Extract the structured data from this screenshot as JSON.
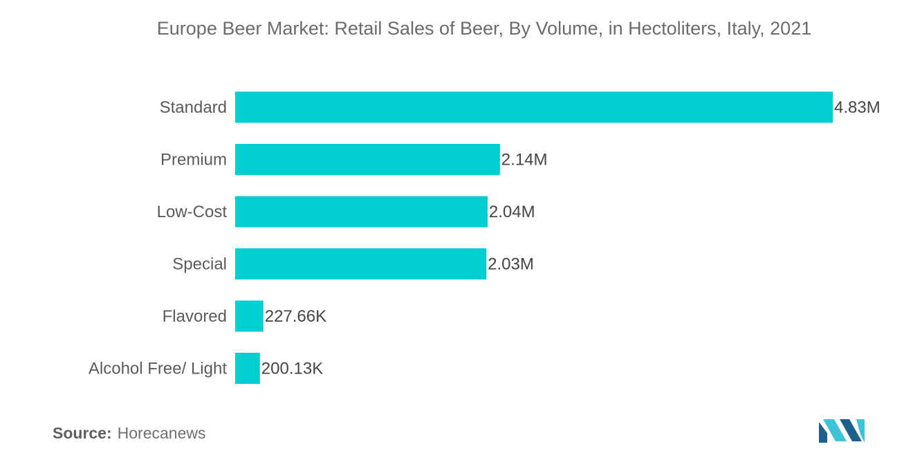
{
  "chart_data": {
    "type": "bar",
    "orientation": "horizontal",
    "title": "Europe Beer Market: Retail Sales of Beer, By Volume, in Hectoliters, Italy, 2021",
    "categories": [
      "Standard",
      "Premium",
      "Low-Cost",
      "Special",
      "Flavored",
      "Alcohol Free/ Light"
    ],
    "values": [
      4830000,
      2140000,
      2040000,
      2030000,
      227660,
      200130
    ],
    "data_labels": [
      "4.83M",
      "2.14M",
      "2.04M",
      "2.03M",
      "227.66K",
      "200.13K"
    ],
    "xlim": [
      0,
      4830000
    ],
    "grid": false,
    "legend": "none",
    "bar_color": "#00CED1"
  },
  "source": {
    "label": "Source:",
    "value": "Horecanews"
  },
  "logo": {
    "icon": "mordor-intelligence-logo-icon",
    "color_dark": "#1f5f8b",
    "color_light": "#3fc3d6"
  }
}
